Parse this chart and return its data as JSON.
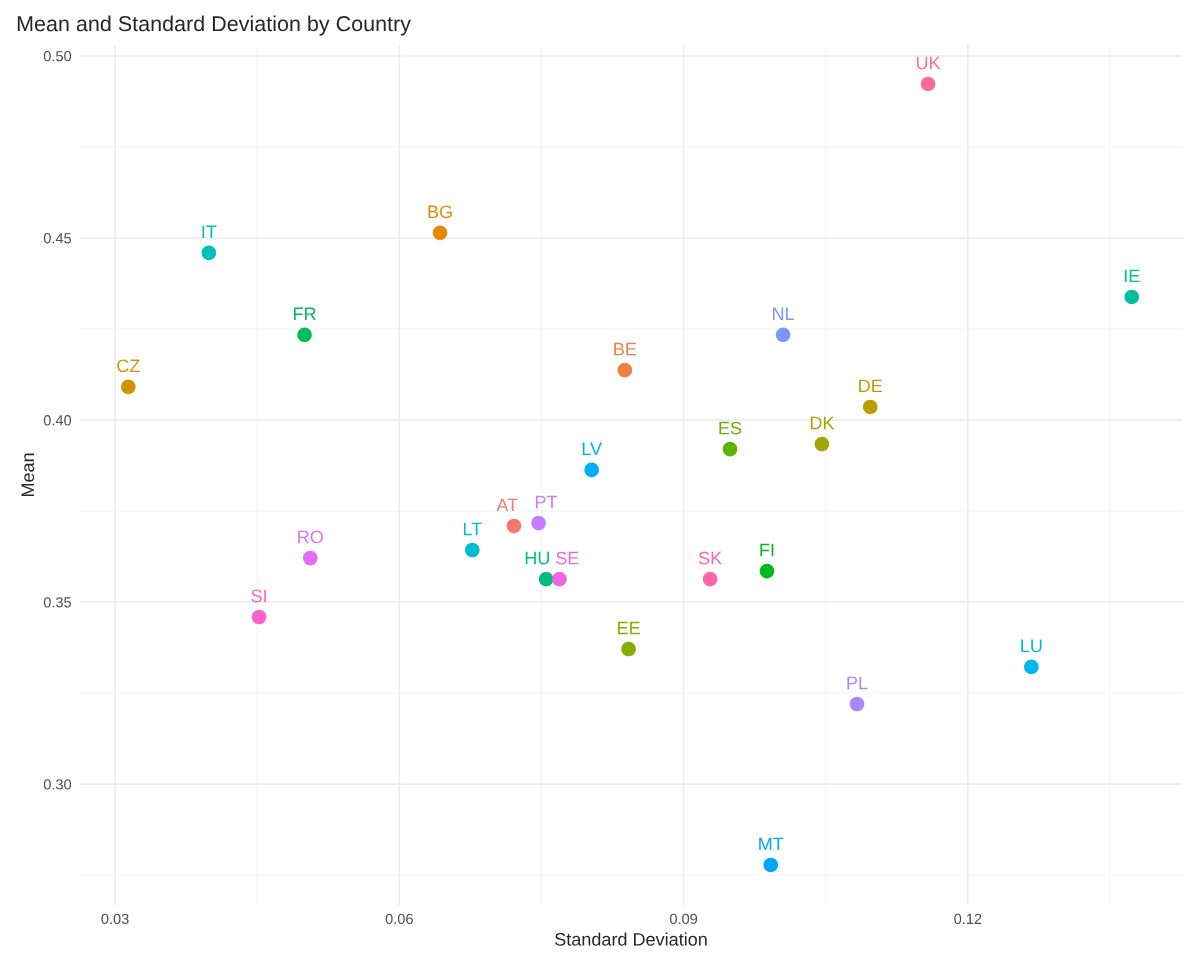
{
  "chart_data": {
    "type": "scatter",
    "title": "Mean and Standard Deviation by Country",
    "xlabel": "Standard Deviation",
    "ylabel": "Mean",
    "xlim": [
      0.0263,
      0.1426
    ],
    "ylim": [
      0.2668,
      0.503
    ],
    "xticks": [
      {
        "value": 0.03,
        "label": "0.03"
      },
      {
        "value": 0.06,
        "label": "0.06"
      },
      {
        "value": 0.09,
        "label": "0.09"
      },
      {
        "value": 0.12,
        "label": "0.12"
      }
    ],
    "yticks": [
      {
        "value": 0.3,
        "label": "0.30"
      },
      {
        "value": 0.35,
        "label": "0.35"
      },
      {
        "value": 0.4,
        "label": "0.40"
      },
      {
        "value": 0.45,
        "label": "0.45"
      },
      {
        "value": 0.5,
        "label": "0.50"
      }
    ],
    "grid": true,
    "marker": "circle",
    "legend": false,
    "x": [
      0.0721,
      0.0838,
      0.0643,
      0.0314,
      0.1097,
      0.1046,
      0.0842,
      0.0949,
      0.0988,
      0.05,
      0.0755,
      0.1373,
      0.0399,
      0.0677,
      0.1267,
      0.0803,
      0.0992,
      0.1005,
      0.1083,
      0.0747,
      0.0506,
      0.0769,
      0.0452,
      0.0928,
      0.1158
    ],
    "values": [
      0.3709,
      0.4137,
      0.4514,
      0.4091,
      0.4036,
      0.3934,
      0.3371,
      0.392,
      0.3585,
      0.4234,
      0.3563,
      0.4338,
      0.4459,
      0.3643,
      0.3322,
      0.3863,
      0.2778,
      0.4234,
      0.322,
      0.3717,
      0.3621,
      0.3563,
      0.3459,
      0.3563,
      0.4923
    ],
    "colors": [
      "#F8766D",
      "#EE8043",
      "#E08B00",
      "#D09400",
      "#BB9D00",
      "#A3A500",
      "#85AD00",
      "#5BB300",
      "#00B81F",
      "#00BC59",
      "#00BF7D",
      "#00C09C",
      "#00C0B8",
      "#00BCD3",
      "#00B6EB",
      "#00ADFA",
      "#00A5FF",
      "#7997FF",
      "#A58AFF",
      "#C77CFF",
      "#E26EF7",
      "#F265E7",
      "#FF61C9",
      "#FF65AC",
      "#FF6C91"
    ],
    "annotations": [
      {
        "text": "AT",
        "x": 0.0721,
        "y": 0.3709
      },
      {
        "text": "BE",
        "x": 0.0838,
        "y": 0.4137
      },
      {
        "text": "BG",
        "x": 0.0643,
        "y": 0.4514
      },
      {
        "text": "CZ",
        "x": 0.0314,
        "y": 0.4091
      },
      {
        "text": "DE",
        "x": 0.1097,
        "y": 0.4036
      },
      {
        "text": "DK",
        "x": 0.1046,
        "y": 0.3934
      },
      {
        "text": "EE",
        "x": 0.0842,
        "y": 0.3371
      },
      {
        "text": "ES",
        "x": 0.0949,
        "y": 0.392
      },
      {
        "text": "FI",
        "x": 0.0988,
        "y": 0.3585
      },
      {
        "text": "FR",
        "x": 0.05,
        "y": 0.4234
      },
      {
        "text": "HU",
        "x": 0.0755,
        "y": 0.3563
      },
      {
        "text": "IE",
        "x": 0.1373,
        "y": 0.4338
      },
      {
        "text": "IT",
        "x": 0.0399,
        "y": 0.4459
      },
      {
        "text": "LT",
        "x": 0.0677,
        "y": 0.3643
      },
      {
        "text": "LU",
        "x": 0.1267,
        "y": 0.3322
      },
      {
        "text": "LV",
        "x": 0.0803,
        "y": 0.3863
      },
      {
        "text": "MT",
        "x": 0.0992,
        "y": 0.2778
      },
      {
        "text": "NL",
        "x": 0.1005,
        "y": 0.4234
      },
      {
        "text": "PL",
        "x": 0.1083,
        "y": 0.322
      },
      {
        "text": "PT",
        "x": 0.0747,
        "y": 0.3717
      },
      {
        "text": "RO",
        "x": 0.0506,
        "y": 0.3621
      },
      {
        "text": "SE",
        "x": 0.0769,
        "y": 0.3563
      },
      {
        "text": "SI",
        "x": 0.0452,
        "y": 0.3459
      },
      {
        "text": "SK",
        "x": 0.0928,
        "y": 0.3563
      },
      {
        "text": "UK",
        "x": 0.1158,
        "y": 0.4923
      }
    ]
  }
}
